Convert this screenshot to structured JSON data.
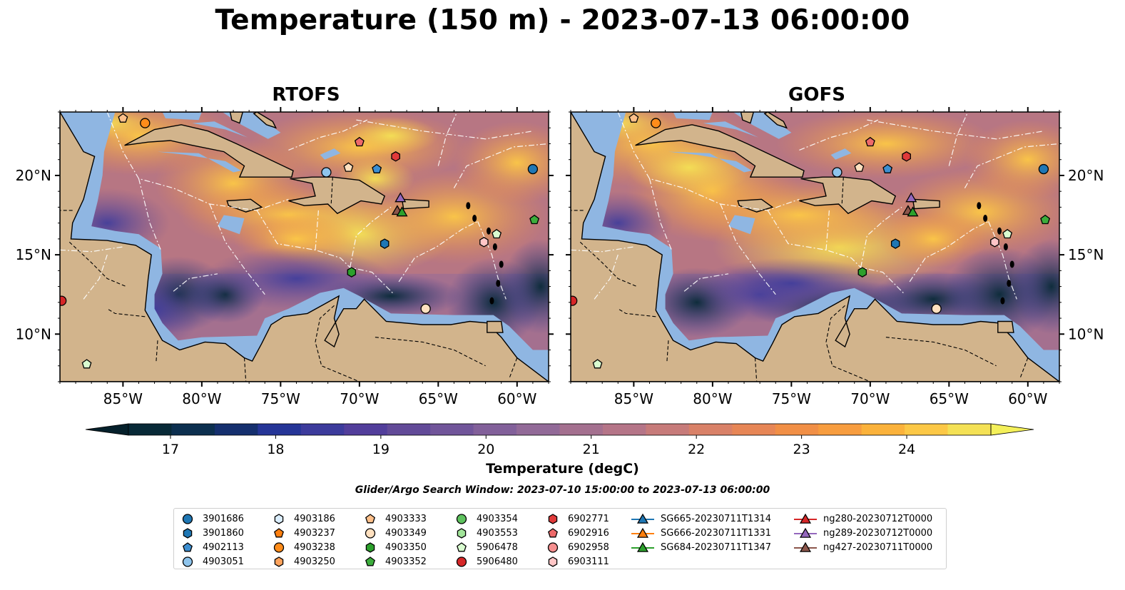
{
  "title": "Temperature (150 m) - 2023-07-13 06:00:00",
  "panels": [
    {
      "title": "RTOFS",
      "style": "rtofs"
    },
    {
      "title": "GOFS",
      "style": "gofs"
    }
  ],
  "map_extent": {
    "lon": [
      -89,
      -58
    ],
    "lat": [
      7,
      24
    ]
  },
  "lon_ticks": [
    "85°W",
    "80°W",
    "75°W",
    "70°W",
    "65°W",
    "60°W"
  ],
  "lon_tick_values": [
    -85,
    -80,
    -75,
    -70,
    -65,
    -60
  ],
  "lat_ticks": [
    "20°N",
    "15°N",
    "10°N"
  ],
  "lat_tick_values": [
    20,
    15,
    10
  ],
  "colorbar": {
    "label": "Temperature (degC)",
    "ticks": [
      "17",
      "18",
      "19",
      "20",
      "21",
      "22",
      "23",
      "24"
    ],
    "tick_values": [
      17,
      18,
      19,
      20,
      21,
      22,
      23,
      24
    ],
    "range": [
      16.6,
      24.8
    ],
    "colors": [
      "#072937",
      "#0c2f4f",
      "#152f6e",
      "#253597",
      "#3c3b9c",
      "#523e9b",
      "#624a98",
      "#71559a",
      "#82609a",
      "#926a98",
      "#a4708f",
      "#b57588",
      "#c77b7a",
      "#d98168",
      "#e78656",
      "#f18f46",
      "#f79d3f",
      "#fbb23b",
      "#fcc846",
      "#f4e155"
    ]
  },
  "search_window": "Glider/Argo Search Window: 2023-07-10 15:00:00 to 2023-07-13 06:00:00",
  "colors": {
    "land": "#d2b48c",
    "shelf": "#8fb6e2",
    "coast": "#000000"
  },
  "legend": {
    "columns": [
      [
        {
          "label": "3901686",
          "marker": "circle",
          "color": "#1f77b4"
        },
        {
          "label": "3901860",
          "marker": "hexagon",
          "color": "#1f77b4"
        },
        {
          "label": "4902113",
          "marker": "pentagon",
          "color": "#3d8fd1"
        },
        {
          "label": "4903051",
          "marker": "circle",
          "color": "#8ec4ec"
        }
      ],
      [
        {
          "label": "4903186",
          "marker": "hexagon",
          "color": "#dbeeff"
        },
        {
          "label": "4903237",
          "marker": "pentagon",
          "color": "#ff7f0e"
        },
        {
          "label": "4903238",
          "marker": "circle",
          "color": "#ff8c1a"
        },
        {
          "label": "4903250",
          "marker": "hexagon",
          "color": "#ffa35c"
        }
      ],
      [
        {
          "label": "4903333",
          "marker": "pentagon",
          "color": "#ffc08a"
        },
        {
          "label": "4903349",
          "marker": "circle",
          "color": "#ffe0bf"
        },
        {
          "label": "4903350",
          "marker": "hexagon",
          "color": "#2ca02c"
        },
        {
          "label": "4903352",
          "marker": "pentagon",
          "color": "#3cad3c"
        }
      ],
      [
        {
          "label": "4903354",
          "marker": "circle",
          "color": "#5ec25e"
        },
        {
          "label": "4903553",
          "marker": "hexagon",
          "color": "#a2e59a"
        },
        {
          "label": "5906478",
          "marker": "pentagon",
          "color": "#d9fcd0"
        },
        {
          "label": "5906480",
          "marker": "circle",
          "color": "#d62728"
        }
      ],
      [
        {
          "label": "6902771",
          "marker": "hexagon",
          "color": "#e03a3a"
        },
        {
          "label": "6902916",
          "marker": "pentagon",
          "color": "#ee6a6a"
        },
        {
          "label": "6902958",
          "marker": "circle",
          "color": "#f58f8f"
        },
        {
          "label": "6903111",
          "marker": "hexagon",
          "color": "#ffc6c6"
        }
      ],
      [
        {
          "label": "SG665-20230711T1314",
          "marker": "triangle",
          "color": "#1f77b4",
          "line": true
        },
        {
          "label": "SG666-20230711T1331",
          "marker": "triangle",
          "color": "#ff7f0e",
          "line": true
        },
        {
          "label": "SG684-20230711T1347",
          "marker": "triangle",
          "color": "#2ca02c",
          "line": true
        }
      ],
      [
        {
          "label": "ng280-20230712T0000",
          "marker": "triangle",
          "color": "#d62728",
          "line": true
        },
        {
          "label": "ng289-20230712T0000",
          "marker": "triangle",
          "color": "#9467bd",
          "line": true
        },
        {
          "label": "ng427-20230711T0000",
          "marker": "triangle",
          "color": "#8c564b",
          "line": true
        }
      ]
    ]
  },
  "map_markers": [
    {
      "lon": -85.0,
      "lat": 23.6,
      "marker": "pentagon",
      "color": "#ffc08a"
    },
    {
      "lon": -83.6,
      "lat": 23.3,
      "marker": "circle",
      "color": "#ff8c1a"
    },
    {
      "lon": -70.0,
      "lat": 22.1,
      "marker": "pentagon",
      "color": "#ee6a6a"
    },
    {
      "lon": -67.7,
      "lat": 21.2,
      "marker": "hexagon",
      "color": "#e03a3a"
    },
    {
      "lon": -72.1,
      "lat": 20.2,
      "marker": "circle",
      "color": "#8ec4ec"
    },
    {
      "lon": -70.7,
      "lat": 20.5,
      "marker": "pentagon",
      "color": "#ffe0bf"
    },
    {
      "lon": -68.9,
      "lat": 20.4,
      "marker": "pentagon",
      "color": "#3d8fd1"
    },
    {
      "lon": -59.0,
      "lat": 20.4,
      "marker": "circle",
      "color": "#1f77b4"
    },
    {
      "lon": -67.4,
      "lat": 18.6,
      "marker": "triangle",
      "color": "#9467bd"
    },
    {
      "lon": -67.6,
      "lat": 17.8,
      "marker": "triangle",
      "color": "#8c564b"
    },
    {
      "lon": -67.3,
      "lat": 17.7,
      "marker": "triangle",
      "color": "#2ca02c"
    },
    {
      "lon": -58.9,
      "lat": 17.2,
      "marker": "pentagon",
      "color": "#3cad3c"
    },
    {
      "lon": -61.3,
      "lat": 16.3,
      "marker": "pentagon",
      "color": "#d9fcd0"
    },
    {
      "lon": -68.4,
      "lat": 15.7,
      "marker": "hexagon",
      "color": "#1f77b4"
    },
    {
      "lon": -62.1,
      "lat": 15.8,
      "marker": "hexagon",
      "color": "#ffc6c6"
    },
    {
      "lon": -70.5,
      "lat": 13.9,
      "marker": "hexagon",
      "color": "#2ca02c"
    },
    {
      "lon": -65.8,
      "lat": 11.6,
      "marker": "circle",
      "color": "#ffe0bf"
    },
    {
      "lon": -88.9,
      "lat": 12.1,
      "marker": "circle",
      "color": "#d62728"
    },
    {
      "lon": -87.3,
      "lat": 8.1,
      "marker": "pentagon",
      "color": "#d9fcd0"
    }
  ]
}
